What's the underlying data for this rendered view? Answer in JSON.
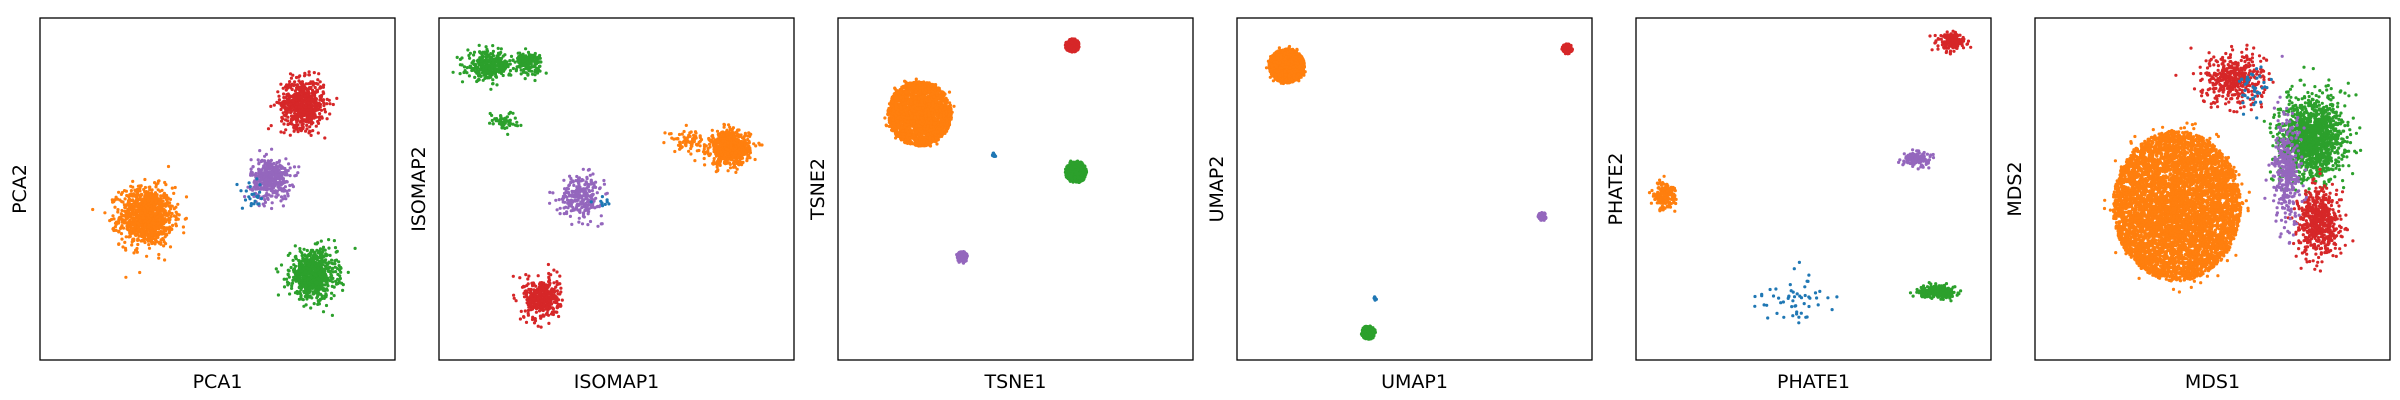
{
  "colors": {
    "blue": "#1f77b4",
    "orange": "#ff7f0e",
    "green": "#2ca02c",
    "red": "#d62728",
    "purple": "#9467bd"
  },
  "chart_data": [
    {
      "type": "scatter",
      "title": "",
      "xlabel": "PCA1",
      "ylabel": "PCA2",
      "xlim": [
        0,
        100
      ],
      "ylim": [
        0,
        100
      ],
      "grid": false,
      "ticks": false,
      "clusters": [
        {
          "color": "orange",
          "center": [
            30,
            42
          ],
          "spread": [
            7.5,
            8.5
          ],
          "n": 1100,
          "shape": "gauss"
        },
        {
          "color": "red",
          "center": [
            74,
            75
          ],
          "spread": [
            6,
            7
          ],
          "n": 650,
          "shape": "gauss"
        },
        {
          "color": "purple",
          "center": [
            65,
            53
          ],
          "spread": [
            5.5,
            6
          ],
          "n": 420,
          "shape": "gauss"
        },
        {
          "color": "green",
          "center": [
            77,
            25
          ],
          "spread": [
            6.5,
            7
          ],
          "n": 750,
          "shape": "gauss"
        },
        {
          "color": "blue",
          "center": [
            60,
            48
          ],
          "spread": [
            3,
            4
          ],
          "n": 25,
          "shape": "gauss"
        }
      ]
    },
    {
      "type": "scatter",
      "title": "",
      "xlabel": "ISOMAP1",
      "ylabel": "ISOMAP2",
      "xlim": [
        0,
        100
      ],
      "ylim": [
        0,
        100
      ],
      "grid": false,
      "ticks": false,
      "clusters": [
        {
          "color": "green",
          "center": [
            14,
            86
          ],
          "spread": [
            6,
            4
          ],
          "n": 320,
          "shape": "gauss"
        },
        {
          "color": "green",
          "center": [
            25,
            87
          ],
          "spread": [
            4,
            3
          ],
          "n": 160,
          "shape": "gauss"
        },
        {
          "color": "green",
          "center": [
            18,
            70
          ],
          "spread": [
            4,
            2.5
          ],
          "n": 60,
          "shape": "gauss"
        },
        {
          "color": "orange",
          "center": [
            82,
            62
          ],
          "spread": [
            5.5,
            5
          ],
          "n": 700,
          "shape": "gauss"
        },
        {
          "color": "orange",
          "center": [
            70,
            64
          ],
          "spread": [
            5,
            3
          ],
          "n": 80,
          "shape": "gauss"
        },
        {
          "color": "purple",
          "center": [
            40,
            48
          ],
          "spread": [
            6,
            6
          ],
          "n": 260,
          "shape": "gauss"
        },
        {
          "color": "red",
          "center": [
            29,
            18
          ],
          "spread": [
            5,
            6
          ],
          "n": 380,
          "shape": "gauss"
        },
        {
          "color": "blue",
          "center": [
            47,
            47
          ],
          "spread": [
            3,
            3
          ],
          "n": 10,
          "shape": "gauss"
        }
      ]
    },
    {
      "type": "scatter",
      "title": "",
      "xlabel": "TSNE1",
      "ylabel": "TSNE2",
      "xlim": [
        0,
        100
      ],
      "ylim": [
        0,
        100
      ],
      "grid": false,
      "ticks": false,
      "clusters": [
        {
          "color": "orange",
          "center": [
            23,
            72
          ],
          "spread": [
            18,
            19
          ],
          "n": 2400,
          "shape": "disk"
        },
        {
          "color": "red",
          "center": [
            66,
            92
          ],
          "spread": [
            4,
            4
          ],
          "n": 220,
          "shape": "disk"
        },
        {
          "color": "green",
          "center": [
            67,
            55
          ],
          "spread": [
            6,
            6.5
          ],
          "n": 420,
          "shape": "disk"
        },
        {
          "color": "purple",
          "center": [
            35,
            30
          ],
          "spread": [
            3,
            3.5
          ],
          "n": 120,
          "shape": "disk"
        },
        {
          "color": "blue",
          "center": [
            44,
            60
          ],
          "spread": [
            1.2,
            1.2
          ],
          "n": 12,
          "shape": "disk"
        }
      ]
    },
    {
      "type": "scatter",
      "title": "",
      "xlabel": "UMAP1",
      "ylabel": "UMAP2",
      "xlim": [
        0,
        100
      ],
      "ylim": [
        0,
        100
      ],
      "grid": false,
      "ticks": false,
      "clusters": [
        {
          "color": "orange",
          "center": [
            14,
            86
          ],
          "spread": [
            10,
            10
          ],
          "n": 1800,
          "shape": "disk"
        },
        {
          "color": "red",
          "center": [
            93,
            91
          ],
          "spread": [
            3,
            3
          ],
          "n": 100,
          "shape": "disk"
        },
        {
          "color": "purple",
          "center": [
            86,
            42
          ],
          "spread": [
            2.3,
            2.3
          ],
          "n": 70,
          "shape": "disk"
        },
        {
          "color": "green",
          "center": [
            37,
            8
          ],
          "spread": [
            4,
            4
          ],
          "n": 180,
          "shape": "disk"
        },
        {
          "color": "blue",
          "center": [
            39,
            18
          ],
          "spread": [
            0.8,
            1.2
          ],
          "n": 8,
          "shape": "disk"
        }
      ]
    },
    {
      "type": "scatter",
      "title": "",
      "xlabel": "PHATE1",
      "ylabel": "PHATE2",
      "xlim": [
        0,
        100
      ],
      "ylim": [
        0,
        100
      ],
      "grid": false,
      "ticks": false,
      "clusters": [
        {
          "color": "orange",
          "center": [
            8,
            48
          ],
          "spread": [
            3,
            4
          ],
          "n": 180,
          "shape": "gauss"
        },
        {
          "color": "red",
          "center": [
            89,
            93
          ],
          "spread": [
            4,
            2.5
          ],
          "n": 150,
          "shape": "gauss"
        },
        {
          "color": "purple",
          "center": [
            79,
            59
          ],
          "spread": [
            4,
            2
          ],
          "n": 140,
          "shape": "gauss"
        },
        {
          "color": "green",
          "center": [
            85,
            20
          ],
          "spread": [
            5,
            1.8
          ],
          "n": 260,
          "shape": "gauss"
        },
        {
          "color": "blue",
          "center": [
            45,
            18
          ],
          "spread": [
            10,
            7
          ],
          "n": 55,
          "shape": "gauss"
        }
      ]
    },
    {
      "type": "scatter",
      "title": "",
      "xlabel": "MDS1",
      "ylabel": "MDS2",
      "xlim": [
        0,
        100
      ],
      "ylim": [
        0,
        100
      ],
      "grid": false,
      "ticks": false,
      "clusters": [
        {
          "color": "orange",
          "center": [
            40,
            45
          ],
          "spread": [
            36,
            44
          ],
          "n": 6000,
          "shape": "disk"
        },
        {
          "color": "red",
          "center": [
            56,
            82
          ],
          "spread": [
            9,
            7
          ],
          "n": 420,
          "shape": "gauss"
        },
        {
          "color": "green",
          "center": [
            78,
            65
          ],
          "spread": [
            9,
            12
          ],
          "n": 1300,
          "shape": "gauss"
        },
        {
          "color": "red",
          "center": [
            80,
            40
          ],
          "spread": [
            6,
            10
          ],
          "n": 550,
          "shape": "gauss"
        },
        {
          "color": "purple",
          "center": [
            71,
            55
          ],
          "spread": [
            4,
            16
          ],
          "n": 350,
          "shape": "gauss"
        },
        {
          "color": "blue",
          "center": [
            62,
            80
          ],
          "spread": [
            4,
            6
          ],
          "n": 40,
          "shape": "gauss"
        }
      ]
    }
  ]
}
